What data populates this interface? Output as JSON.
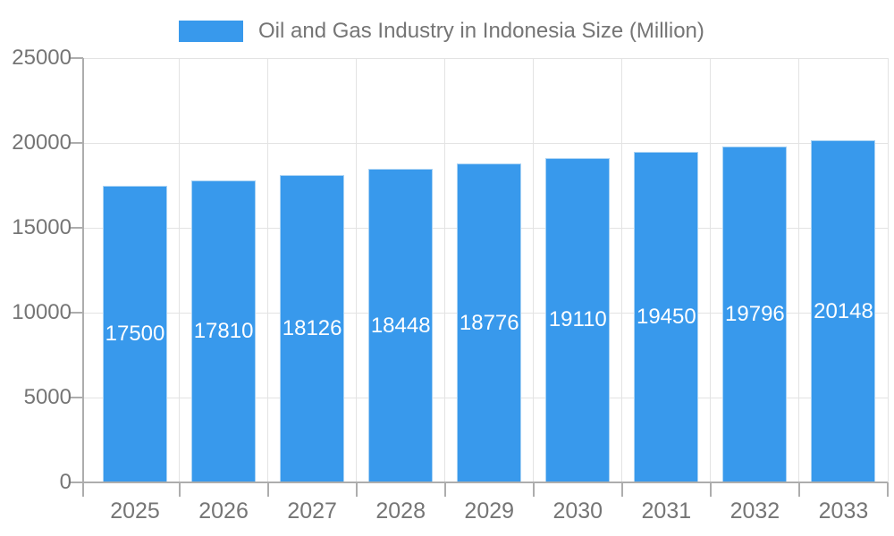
{
  "legend": {
    "label": "Oil and Gas Industry in Indonesia Size (Million)"
  },
  "chart_data": {
    "type": "bar",
    "title": "Oil and Gas Industry in Indonesia Size (Million)",
    "series": [
      {
        "name": "Oil and Gas Industry in Indonesia Size (Million)",
        "values": [
          17500,
          17810,
          18126,
          18448,
          18776,
          19110,
          19450,
          19796,
          20148
        ]
      }
    ],
    "categories": [
      "2025",
      "2026",
      "2027",
      "2028",
      "2029",
      "2030",
      "2031",
      "2032",
      "2033"
    ],
    "value_labels": [
      "17500",
      "17810",
      "18126",
      "18448",
      "18776",
      "19110",
      "19450",
      "19796",
      "20148"
    ],
    "xlabel": "",
    "ylabel": "",
    "ylim": [
      0,
      25000
    ],
    "yticks": [
      0,
      5000,
      10000,
      15000,
      20000,
      25000
    ],
    "ytick_labels": [
      "0",
      "5000",
      "10000",
      "15000",
      "20000",
      "25000"
    ],
    "grid": true,
    "legend_position": "top",
    "colors": {
      "bar_fill": "#3899EC",
      "bar_border": "#A8D2F4",
      "axis_text": "#757575",
      "value_text": "#FFFFFF",
      "gridline": "#E3E3E3",
      "axis_line": "#ADADAD"
    }
  }
}
